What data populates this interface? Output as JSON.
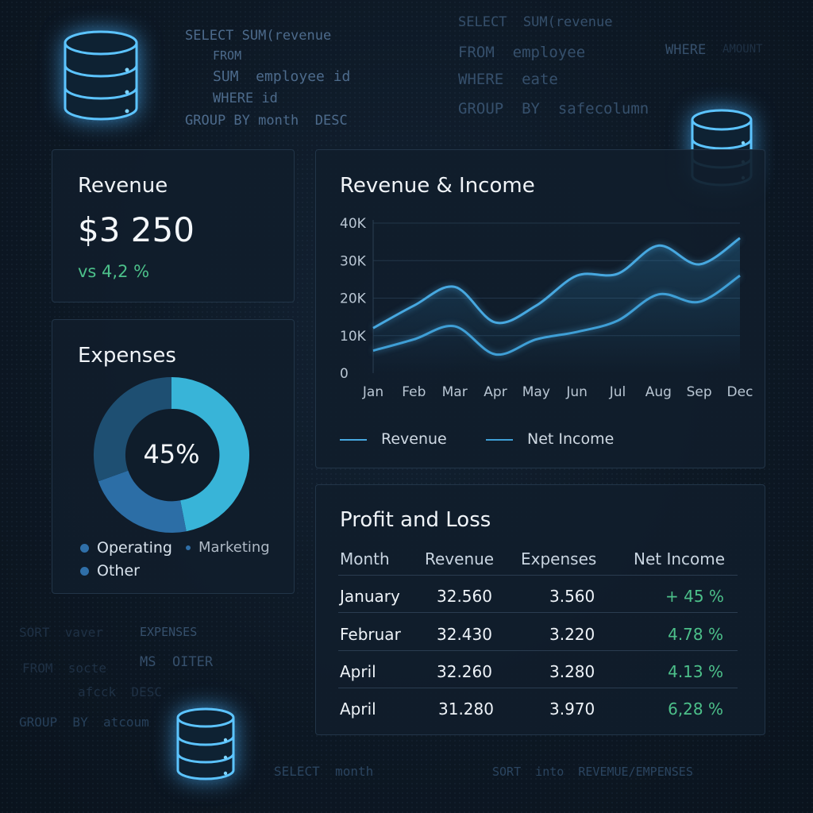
{
  "background_code": [
    "SELECT SUM(revenue",
    "FROM",
    "SUM  employee id",
    "WHERE id",
    "GROUP BY month  DESC",
    "SELECT  SUM(revenue",
    "FROM  employee",
    "WHERE  eate",
    "GROUP  BY  safecolumn",
    "WHERE",
    "AMOUNT",
    "SORT  vaver",
    "EXPENSES",
    "FROM  socte",
    "MS  OITER",
    "afcck  DESC",
    "GROUP  BY  atcoum",
    "SELECT  month",
    "SORT  into  REVEMUE/EMPENSES"
  ],
  "revenue_card": {
    "title": "Revenue",
    "value": "$3 250",
    "delta": "vs 4,2 %"
  },
  "expenses_card": {
    "title": "Expenses",
    "center_label": "45%",
    "legend": [
      "Operating",
      "Marketing",
      "Other"
    ]
  },
  "revenue_income_card": {
    "title": "Revenue & Income"
  },
  "chart_data": {
    "type": "line",
    "title": "Revenue & Income",
    "x": [
      "Jan",
      "Feb",
      "Mar",
      "Apr",
      "May",
      "Jun",
      "Jul",
      "Aug",
      "Sep",
      "Dec"
    ],
    "y_ticks": [
      "40K",
      "30K",
      "20K",
      "10K",
      "0"
    ],
    "ylim": [
      0,
      40000
    ],
    "series": [
      {
        "name": "Revenue",
        "values": [
          12000,
          18000,
          23000,
          13500,
          18000,
          26000,
          26500,
          34000,
          29000,
          36000
        ]
      },
      {
        "name": "Net Income",
        "values": [
          6000,
          9000,
          12500,
          5000,
          9000,
          11000,
          14000,
          21000,
          19000,
          26000
        ]
      }
    ],
    "grid": true,
    "legend_position": "bottom"
  },
  "colors": {
    "revenue_line": "#47a8e0",
    "net_income_line": "#3f9fd6",
    "positive": "#4cc08a",
    "donut_main": "#38b4d8",
    "donut_dark": "#1e4f72",
    "donut_mid": "#2c6ea6"
  },
  "pnl": {
    "title": "Profit and Loss",
    "headers": [
      "Month",
      "Revenue",
      "Expenses",
      "Net Income"
    ],
    "rows": [
      [
        "January",
        "32.560",
        "3.560",
        "+ 45 %"
      ],
      [
        "Februar",
        "32.430",
        "3.220",
        "4.78 %"
      ],
      [
        "April",
        "32.260",
        "3.280",
        "4.13 %"
      ],
      [
        "April",
        "31.280",
        "3.970",
        "6,28 %"
      ]
    ]
  }
}
